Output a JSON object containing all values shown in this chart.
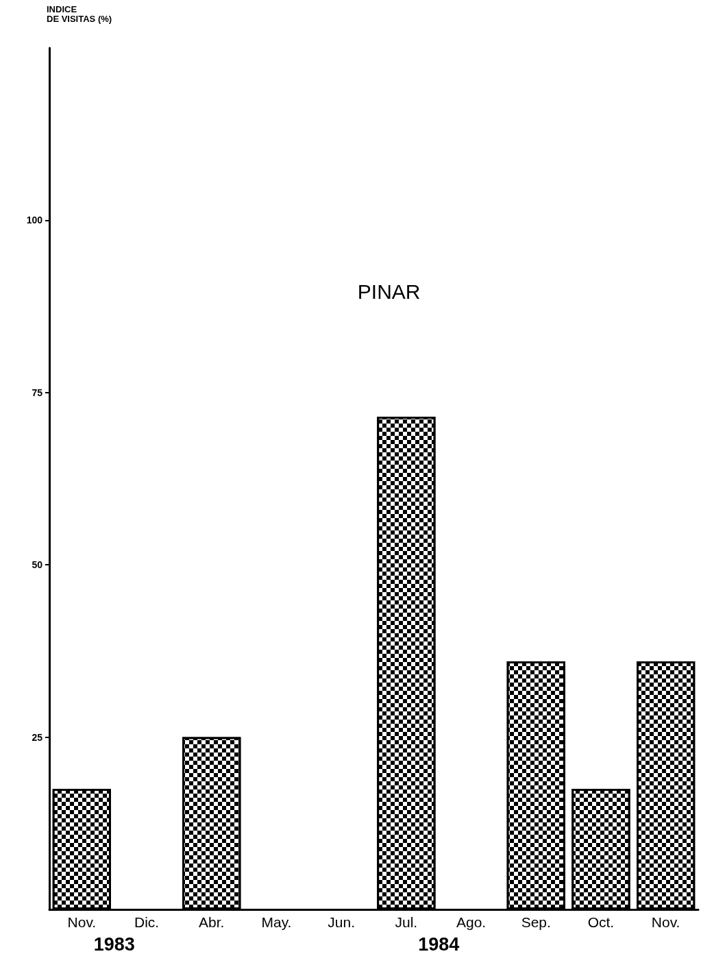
{
  "chart_data": {
    "type": "bar",
    "title": "PINAR",
    "ylabel": "INDICE\nDE VISITAS (%)",
    "categories": [
      "Nov.",
      "Dic.",
      "Abr.",
      "May.",
      "Jun.",
      "Jul.",
      "Ago.",
      "Sep.",
      "Oct.",
      "Nov."
    ],
    "values": [
      17.5,
      null,
      25,
      null,
      null,
      71.5,
      null,
      36,
      17.5,
      36
    ],
    "color": "#000000",
    "ylim": [
      0,
      125
    ],
    "yticks": [
      25,
      50,
      75,
      100
    ],
    "grid": false,
    "annotations": [
      "1983",
      "1984"
    ]
  }
}
